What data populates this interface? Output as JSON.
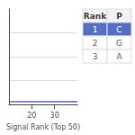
{
  "chart_data": {
    "type": "line",
    "xlabel": "Signal Rank (Top 50)",
    "xlim": [
      10,
      40
    ],
    "xticks": [
      20,
      30
    ],
    "ylim": [
      0,
      100
    ],
    "yticks": [
      25,
      50,
      75
    ],
    "tick_labels": "x",
    "grid": true,
    "hline": 3,
    "table": {
      "headers": [
        "Rank",
        "P"
      ],
      "rows": [
        [
          "1",
          "C"
        ],
        [
          "2",
          "G"
        ],
        [
          "3",
          "A"
        ]
      ],
      "highlight_row": 0
    }
  }
}
